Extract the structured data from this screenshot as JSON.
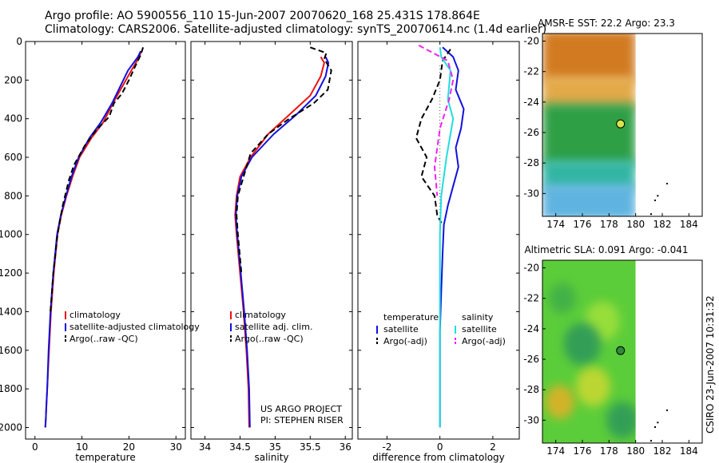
{
  "header": {
    "line1": "Argo profile: AO 5900556_110 15-Jun-2007 20070620_168 25.431S 178.864E",
    "line2": "Climatology: CARS2006. Satellite-adjusted climatology: synTS_20070614.nc (1.4d earlier)"
  },
  "credit": {
    "project": "US ARGO PROJECT",
    "pi": "PI: STEPHEN RISER",
    "stamp": "CSIRO 23-Jun-2007 10:31:32"
  },
  "colors": {
    "climatology": "#ee1111",
    "satellite": "#1111dd",
    "argo": "#000000",
    "sat_diff_salinity": "#22dddd",
    "argo_diff_salinity": "#ee22ee"
  },
  "chart_data": [
    {
      "type": "line",
      "id": "temperature",
      "xlabel": "temperature",
      "xlim": [
        -2,
        32
      ],
      "ylim": [
        2060,
        0
      ],
      "xticks": [
        0,
        10,
        20,
        30
      ],
      "yticks": [
        0,
        200,
        400,
        600,
        800,
        1000,
        1200,
        1400,
        1600,
        1800,
        2000
      ],
      "legend": [
        "climatology",
        "satellite-adjusted climatology",
        "Argo(..raw -QC)"
      ],
      "series": [
        {
          "name": "climatology",
          "role": "climatology",
          "x": [
            22.6,
            22.2,
            20.5,
            18.2,
            16.6,
            14.5,
            12.0,
            9.5,
            8.0,
            6.7,
            5.6,
            4.8,
            4.0,
            3.4,
            3.0,
            2.6,
            2.4,
            2.3,
            2.2
          ],
          "y": [
            50,
            80,
            150,
            250,
            320,
            420,
            500,
            600,
            700,
            800,
            900,
            1000,
            1200,
            1400,
            1600,
            1800,
            1900,
            1960,
            2000
          ]
        },
        {
          "name": "satellite-adjusted climatology",
          "role": "satellite",
          "x": [
            22.5,
            21.9,
            19.8,
            17.8,
            16.4,
            14.0,
            11.6,
            9.3,
            7.8,
            6.6,
            5.5,
            4.7,
            3.9,
            3.3,
            2.9,
            2.6,
            2.4,
            2.3,
            2.2
          ],
          "y": [
            50,
            80,
            150,
            250,
            320,
            420,
            500,
            600,
            700,
            800,
            900,
            1000,
            1200,
            1400,
            1600,
            1800,
            1900,
            1960,
            2000
          ]
        },
        {
          "name": "Argo(..raw -QC)",
          "role": "argo",
          "x": [
            23.0,
            22.5,
            21.5,
            20.0,
            18.5,
            16.8,
            15.8,
            13.0,
            10.6,
            8.3,
            7.2,
            5.9,
            4.8,
            3.9,
            3.3
          ],
          "y": [
            30,
            70,
            120,
            200,
            270,
            320,
            390,
            460,
            540,
            640,
            720,
            850,
            1000,
            1200,
            1400
          ]
        }
      ]
    },
    {
      "type": "line",
      "id": "salinity",
      "xlabel": "salinity",
      "xlim": [
        33.8,
        36.1
      ],
      "ylim": [
        2060,
        0
      ],
      "xticks": [
        34,
        34.5,
        35,
        35.5,
        36
      ],
      "legend": [
        "climatology",
        "satellite adj. clim.",
        "Argo(..raw -QC)"
      ],
      "series": [
        {
          "name": "climatology",
          "role": "climatology",
          "x": [
            35.65,
            35.7,
            35.65,
            35.5,
            35.2,
            34.9,
            34.65,
            34.5,
            34.45,
            34.43,
            34.45,
            34.5,
            34.55,
            34.59,
            34.62,
            34.63
          ],
          "y": [
            80,
            110,
            180,
            280,
            380,
            480,
            600,
            700,
            800,
            900,
            1000,
            1200,
            1400,
            1600,
            1800,
            2000
          ]
        },
        {
          "name": "satellite adj. clim.",
          "role": "satellite",
          "x": [
            35.72,
            35.76,
            35.72,
            35.58,
            35.3,
            34.98,
            34.67,
            34.52,
            34.46,
            34.44,
            34.46,
            34.51,
            34.56,
            34.6,
            34.63,
            34.64
          ],
          "y": [
            80,
            110,
            180,
            280,
            380,
            480,
            600,
            700,
            800,
            900,
            1000,
            1200,
            1400,
            1600,
            1800,
            2000
          ]
        },
        {
          "name": "Argo(..raw -QC)",
          "role": "argo",
          "x": [
            35.5,
            35.73,
            35.7,
            35.8,
            35.75,
            35.55,
            35.2,
            34.9,
            34.65,
            34.55,
            34.47,
            34.45,
            34.47,
            34.52
          ],
          "y": [
            30,
            60,
            90,
            150,
            250,
            320,
            400,
            480,
            580,
            700,
            800,
            900,
            1000,
            1200
          ]
        }
      ]
    },
    {
      "type": "line",
      "id": "difference",
      "xlabel": "difference from climatology",
      "xlim": [
        -3.1,
        3.0
      ],
      "ylim": [
        2060,
        0
      ],
      "xticks": [
        -2,
        0,
        2
      ],
      "legend_groups": [
        {
          "title": "temperature",
          "items": [
            "satellite",
            "Argo(-adj)"
          ]
        },
        {
          "title": "salinity",
          "items": [
            "satellite",
            "Argo(-adj)"
          ]
        }
      ],
      "series": [
        {
          "name": "satellite",
          "group": "temperature",
          "role": "satellite",
          "x": [
            0.1,
            0.5,
            0.7,
            0.6,
            0.9,
            0.8,
            0.6,
            0.7,
            0.5,
            0.3,
            0.15,
            0.1,
            0.05,
            0.0,
            0.0,
            0.0
          ],
          "y": [
            30,
            80,
            150,
            250,
            350,
            450,
            550,
            650,
            750,
            850,
            950,
            1100,
            1300,
            1500,
            1800,
            2000
          ]
        },
        {
          "name": "Argo(-adj)",
          "group": "temperature",
          "role": "argo",
          "x": [
            0.4,
            0.1,
            0.0,
            -0.3,
            -0.7,
            -0.9,
            -0.5,
            -0.7,
            -0.2,
            -0.1,
            0.1
          ],
          "y": [
            40,
            100,
            200,
            300,
            400,
            500,
            600,
            700,
            800,
            900,
            950
          ]
        },
        {
          "name": "satellite",
          "group": "salinity",
          "role": "sat_diff_salinity",
          "x": [
            0.0,
            0.05,
            0.4,
            0.3,
            0.5,
            0.25,
            0.05,
            0.0,
            0.0,
            0.0,
            0.0
          ],
          "y": [
            30,
            80,
            150,
            300,
            400,
            600,
            800,
            1000,
            1300,
            1600,
            2000
          ]
        },
        {
          "name": "Argo(-adj)",
          "group": "salinity",
          "role": "argo_diff_salinity",
          "x": [
            -0.8,
            0.3,
            0.5,
            0.35,
            0.0,
            -0.2,
            -0.1
          ],
          "y": [
            20,
            100,
            200,
            300,
            450,
            650,
            800
          ]
        }
      ]
    },
    {
      "type": "heatmap",
      "id": "sst_map",
      "title": "AMSR-E SST: 22.2 Argo: 23.3",
      "xlim": [
        173,
        185
      ],
      "ylim": [
        -31.5,
        -19.5
      ],
      "xticks": [
        174,
        176,
        178,
        180,
        182,
        184
      ],
      "yticks": [
        -20,
        -22,
        -24,
        -26,
        -28,
        -30
      ],
      "data_lon_max": 180,
      "marker": {
        "lon": 178.864,
        "lat": -25.431
      },
      "color_bands": [
        {
          "lat_from": -19.5,
          "lat_to": -22.5,
          "color": "#d17a24"
        },
        {
          "lat_from": -22.5,
          "lat_to": -24.3,
          "color": "#e3a94a"
        },
        {
          "lat_from": -24.3,
          "lat_to": -28.0,
          "color": "#2f9f44"
        },
        {
          "lat_from": -28.0,
          "lat_to": -29.6,
          "color": "#33b6a3"
        },
        {
          "lat_from": -29.6,
          "lat_to": -31.5,
          "color": "#5fb3e0"
        }
      ]
    },
    {
      "type": "heatmap",
      "id": "sla_map",
      "title": "Altimetric SLA: 0.091 Argo: -0.041",
      "xlim": [
        173,
        185
      ],
      "ylim": [
        -31.5,
        -19.5
      ],
      "xticks": [
        174,
        176,
        178,
        180,
        182,
        184
      ],
      "yticks": [
        -20,
        -22,
        -24,
        -26,
        -28,
        -30
      ],
      "data_lon_max": 180,
      "marker": {
        "lon": 178.864,
        "lat": -25.431
      },
      "base_color": "#5ccd3a",
      "patches": [
        {
          "lon": 177.5,
          "lat": -23.5,
          "r": 1.3,
          "color": "#9ee03a"
        },
        {
          "lon": 176.0,
          "lat": -25.0,
          "r": 1.4,
          "color": "#2f9a5a"
        },
        {
          "lon": 176.8,
          "lat": -27.8,
          "r": 1.3,
          "color": "#c6d830"
        },
        {
          "lon": 174.3,
          "lat": -28.8,
          "r": 1.1,
          "color": "#e0b028"
        },
        {
          "lon": 179.0,
          "lat": -30.0,
          "r": 1.2,
          "color": "#2f9a5a"
        },
        {
          "lon": 174.5,
          "lat": -22.0,
          "r": 1.0,
          "color": "#3fae4a"
        }
      ]
    }
  ]
}
